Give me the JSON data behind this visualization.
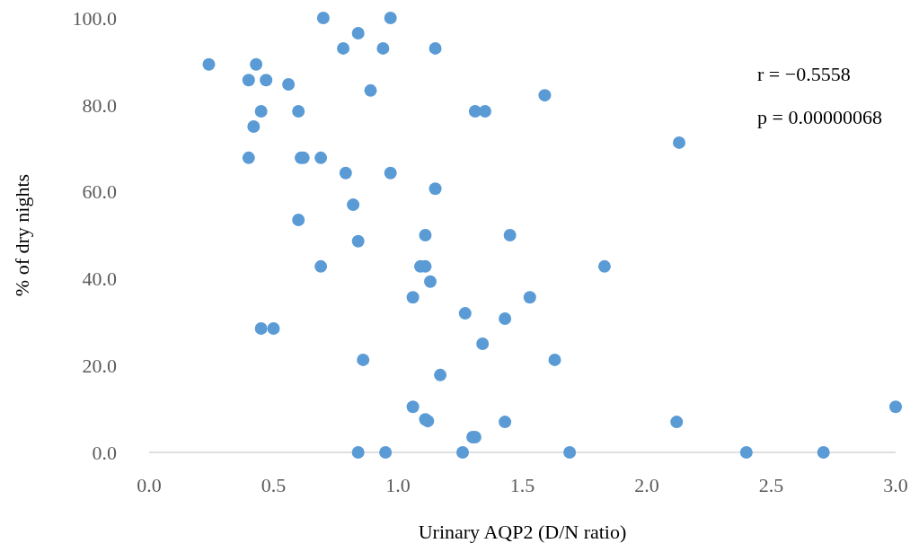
{
  "chart_data": {
    "type": "scatter",
    "xlabel": "Urinary AQP2 (D/N ratio)",
    "ylabel": "% of dry nights",
    "xlim": [
      0,
      3
    ],
    "ylim": [
      0,
      100
    ],
    "xticks": [
      {
        "value": 0,
        "label": "0.0"
      },
      {
        "value": 0.5,
        "label": "0.5"
      },
      {
        "value": 1,
        "label": "1.0"
      },
      {
        "value": 1.5,
        "label": "1.5"
      },
      {
        "value": 2,
        "label": "2.0"
      },
      {
        "value": 2.5,
        "label": "2.5"
      },
      {
        "value": 3,
        "label": "3.0"
      }
    ],
    "yticks": [
      {
        "value": 0,
        "label": "0.0"
      },
      {
        "value": 20,
        "label": "20.0"
      },
      {
        "value": 40,
        "label": "40.0"
      },
      {
        "value": 60,
        "label": "60.0"
      },
      {
        "value": 80,
        "label": "80.0"
      },
      {
        "value": 100,
        "label": "100.0"
      }
    ],
    "grid": false,
    "marker": "circle",
    "annotations": [
      "r = −0.5558",
      "p = 0.00000068"
    ],
    "series": [
      {
        "color": "#5b9bd5",
        "x": [
          0.24,
          0.4,
          0.43,
          0.47,
          0.56,
          0.45,
          0.42,
          0.6,
          0.4,
          0.61,
          0.62,
          0.69,
          0.7,
          0.97,
          0.84,
          0.78,
          0.94,
          1.15,
          0.89,
          1.59,
          1.31,
          1.35,
          2.13,
          0.79,
          0.97,
          1.15,
          0.82,
          0.6,
          1.11,
          1.45,
          0.84,
          0.69,
          1.09,
          1.11,
          1.83,
          1.13,
          1.06,
          1.53,
          1.27,
          1.43,
          0.45,
          0.5,
          1.34,
          0.86,
          1.63,
          1.17,
          1.06,
          3.0,
          1.11,
          1.12,
          1.43,
          2.12,
          1.3,
          1.31,
          0.84,
          0.95,
          1.26,
          1.69,
          2.4,
          2.71
        ],
        "values": [
          89.3,
          85.7,
          89.3,
          85.7,
          84.7,
          78.5,
          75.0,
          78.5,
          67.8,
          67.8,
          67.8,
          67.8,
          100,
          100,
          96.5,
          93.0,
          93.0,
          93.0,
          83.3,
          82.2,
          78.5,
          78.5,
          71.3,
          64.3,
          64.3,
          60.7,
          57.0,
          53.5,
          50.0,
          50.0,
          48.6,
          42.8,
          42.8,
          42.8,
          42.8,
          39.3,
          35.7,
          35.7,
          32.0,
          30.8,
          28.5,
          28.5,
          25.0,
          21.3,
          21.3,
          17.8,
          10.5,
          10.5,
          7.6,
          7.2,
          7.0,
          7.0,
          3.5,
          3.5,
          0,
          0,
          0,
          0,
          0,
          0
        ]
      }
    ]
  }
}
